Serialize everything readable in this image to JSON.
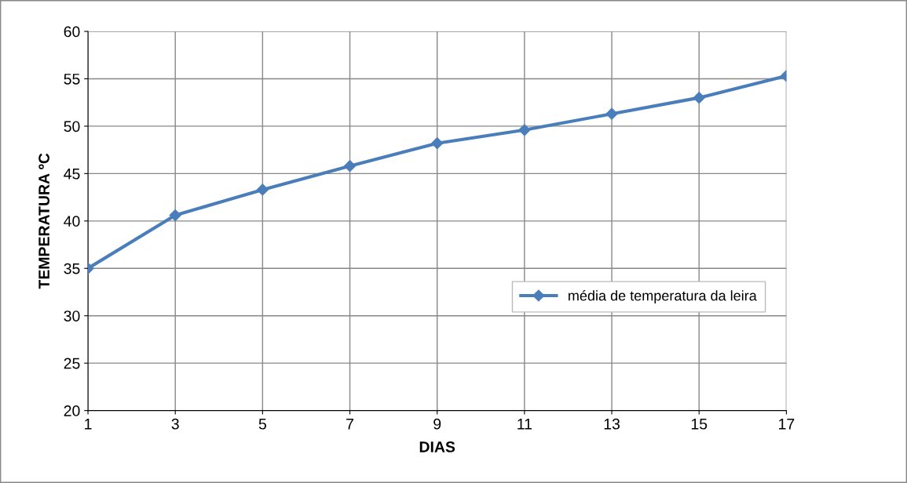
{
  "chart_data": {
    "type": "line",
    "xlabel": "DIAS",
    "ylabel": "TEMPERATURA ºC",
    "x": [
      1,
      3,
      5,
      7,
      9,
      11,
      13,
      15,
      17
    ],
    "series": [
      {
        "name": "média de temperatura da leira",
        "color": "#4a7ebb",
        "values": [
          35.0,
          40.6,
          43.3,
          45.8,
          48.2,
          49.6,
          51.3,
          53.0,
          55.3
        ]
      }
    ],
    "xlim": [
      1,
      17
    ],
    "xticks": [
      1,
      3,
      5,
      7,
      9,
      11,
      13,
      15,
      17
    ],
    "ylim": [
      20,
      60
    ],
    "yticks": [
      20,
      25,
      30,
      35,
      40,
      45,
      50,
      55,
      60
    ],
    "grid": true,
    "legend": "right",
    "marker": "diamond",
    "line_style": "solid"
  }
}
